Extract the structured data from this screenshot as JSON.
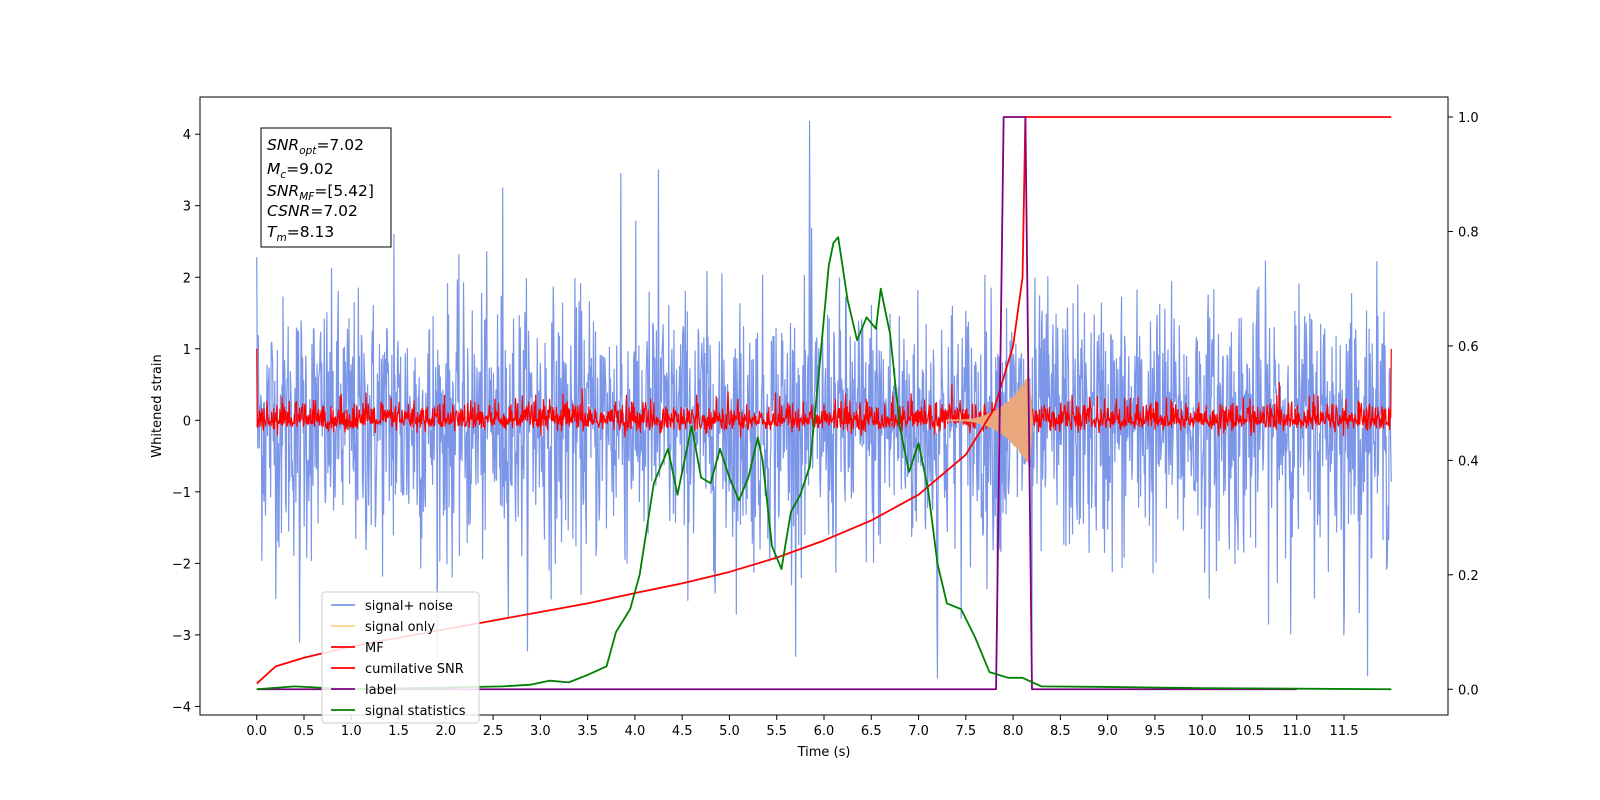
{
  "chart_data": {
    "type": "line",
    "xlabel": "Time (s)",
    "ylabel": "Whitened strain",
    "title": "",
    "xlim": [
      -0.6,
      12.6
    ],
    "ylim": [
      -4.12,
      4.52
    ],
    "y2lim": [
      -0.045,
      1.035
    ],
    "x_ticks": [
      "0.0",
      "0.5",
      "1.0",
      "1.5",
      "2.0",
      "2.5",
      "3.0",
      "3.5",
      "4.0",
      "4.5",
      "5.0",
      "5.5",
      "6.0",
      "6.5",
      "7.0",
      "7.5",
      "8.0",
      "8.5",
      "9.0",
      "9.5",
      "10.0",
      "10.5",
      "11.0",
      "11.5"
    ],
    "y_ticks": [
      "4",
      "3",
      "2",
      "1",
      "0",
      "−1",
      "−2",
      "−3",
      "−4"
    ],
    "y2_ticks": [
      "1.0",
      "0.8",
      "0.6",
      "0.4",
      "0.2",
      "0.0"
    ],
    "info_box": {
      "snr_opt": {
        "base": "SNR",
        "sub": "opt",
        "value": "=7.02"
      },
      "mc": {
        "base": "M",
        "sub": "c",
        "value": "=9.02"
      },
      "snr_mf": {
        "base": "SNR",
        "sub": "MF",
        "value": "=[5.42]"
      },
      "csnr": {
        "base": "CSNR",
        "sub": "",
        "value": "=7.02"
      },
      "tm": {
        "base": "T",
        "sub": "m",
        "value": "=8.13"
      }
    },
    "legend": {
      "placement": "lower-left",
      "entries": [
        {
          "label": "signal+ noise",
          "color": "#7b96e8"
        },
        {
          "label": "signal only",
          "color": "#f5d38a"
        },
        {
          "label": "MF",
          "color": "#ff0000"
        },
        {
          "label": "cumilative SNR",
          "color": "#ff0000"
        },
        {
          "label": "label",
          "color": "#800080"
        },
        {
          "label": "signal statistics",
          "color": "#008000"
        }
      ]
    },
    "series": [
      {
        "name": "signal+ noise",
        "axis": "left",
        "color": "#7b96e8",
        "kind": "noise",
        "t_start": 0.0,
        "t_end": 12.0,
        "std_pos": 0.85,
        "std_neg": 0.95,
        "peaks": [
          [
            0.0,
            2.28
          ],
          [
            0.45,
            -3.1
          ],
          [
            1.45,
            2.6
          ],
          [
            2.6,
            3.25
          ],
          [
            3.85,
            3.45
          ],
          [
            4.25,
            3.5
          ],
          [
            5.85,
            4.18
          ],
          [
            5.7,
            -3.3
          ],
          [
            7.2,
            -3.6
          ],
          [
            8.2,
            -3.6
          ],
          [
            11.5,
            -3.0
          ]
        ]
      },
      {
        "name": "MF",
        "axis": "left",
        "color": "#ff0000",
        "kind": "noise",
        "t_start": 0.0,
        "t_end": 12.0,
        "std_pos": 0.14,
        "std_neg": 0.07,
        "floor": -0.3,
        "ceil": 0.62,
        "peaks": [
          [
            0.0,
            1.0
          ],
          [
            12.0,
            1.0
          ]
        ]
      },
      {
        "name": "signal only",
        "axis": "left",
        "color": "#e8a87c",
        "kind": "chirp",
        "t_start": 7.3,
        "t_end": 8.2,
        "peak": 0.7
      },
      {
        "name": "cumilative SNR",
        "axis": "right",
        "color": "#ff0000",
        "points": [
          [
            0.0,
            0.01
          ],
          [
            0.2,
            0.04
          ],
          [
            0.5,
            0.055
          ],
          [
            1.0,
            0.075
          ],
          [
            1.5,
            0.09
          ],
          [
            2.0,
            0.105
          ],
          [
            2.5,
            0.12
          ],
          [
            3.0,
            0.135
          ],
          [
            3.5,
            0.15
          ],
          [
            4.0,
            0.168
          ],
          [
            4.5,
            0.185
          ],
          [
            5.0,
            0.205
          ],
          [
            5.5,
            0.23
          ],
          [
            6.0,
            0.26
          ],
          [
            6.5,
            0.295
          ],
          [
            7.0,
            0.34
          ],
          [
            7.5,
            0.41
          ],
          [
            7.8,
            0.49
          ],
          [
            8.0,
            0.6
          ],
          [
            8.1,
            0.72
          ],
          [
            8.13,
            1.0
          ],
          [
            12.0,
            1.0
          ]
        ]
      },
      {
        "name": "label",
        "axis": "right",
        "color": "#800080",
        "points": [
          [
            0.0,
            0.0
          ],
          [
            7.82,
            0.0
          ],
          [
            7.9,
            1.0
          ],
          [
            8.13,
            1.0
          ],
          [
            8.2,
            0.0
          ],
          [
            11.0,
            0.0
          ]
        ]
      },
      {
        "name": "signal statistics",
        "axis": "right",
        "color": "#008000",
        "points": [
          [
            0.0,
            0.0
          ],
          [
            0.4,
            0.005
          ],
          [
            1.0,
            0.0
          ],
          [
            2.0,
            0.003
          ],
          [
            2.6,
            0.005
          ],
          [
            2.9,
            0.008
          ],
          [
            3.1,
            0.015
          ],
          [
            3.3,
            0.012
          ],
          [
            3.5,
            0.025
          ],
          [
            3.7,
            0.04
          ],
          [
            3.8,
            0.1
          ],
          [
            3.95,
            0.14
          ],
          [
            4.05,
            0.2
          ],
          [
            4.2,
            0.36
          ],
          [
            4.35,
            0.42
          ],
          [
            4.45,
            0.34
          ],
          [
            4.6,
            0.46
          ],
          [
            4.7,
            0.37
          ],
          [
            4.8,
            0.36
          ],
          [
            4.9,
            0.42
          ],
          [
            5.0,
            0.37
          ],
          [
            5.1,
            0.33
          ],
          [
            5.2,
            0.37
          ],
          [
            5.3,
            0.44
          ],
          [
            5.35,
            0.4
          ],
          [
            5.45,
            0.25
          ],
          [
            5.55,
            0.21
          ],
          [
            5.65,
            0.31
          ],
          [
            5.75,
            0.34
          ],
          [
            5.85,
            0.39
          ],
          [
            5.95,
            0.56
          ],
          [
            6.05,
            0.74
          ],
          [
            6.1,
            0.78
          ],
          [
            6.15,
            0.79
          ],
          [
            6.25,
            0.68
          ],
          [
            6.35,
            0.61
          ],
          [
            6.45,
            0.65
          ],
          [
            6.55,
            0.63
          ],
          [
            6.6,
            0.7
          ],
          [
            6.7,
            0.62
          ],
          [
            6.8,
            0.46
          ],
          [
            6.9,
            0.38
          ],
          [
            7.0,
            0.43
          ],
          [
            7.1,
            0.35
          ],
          [
            7.2,
            0.22
          ],
          [
            7.3,
            0.15
          ],
          [
            7.45,
            0.14
          ],
          [
            7.6,
            0.09
          ],
          [
            7.75,
            0.03
          ],
          [
            7.95,
            0.02
          ],
          [
            8.1,
            0.02
          ],
          [
            8.3,
            0.005
          ],
          [
            9.0,
            0.004
          ],
          [
            10.0,
            0.002
          ],
          [
            11.0,
            0.001
          ],
          [
            12.0,
            0.0
          ]
        ]
      }
    ]
  }
}
